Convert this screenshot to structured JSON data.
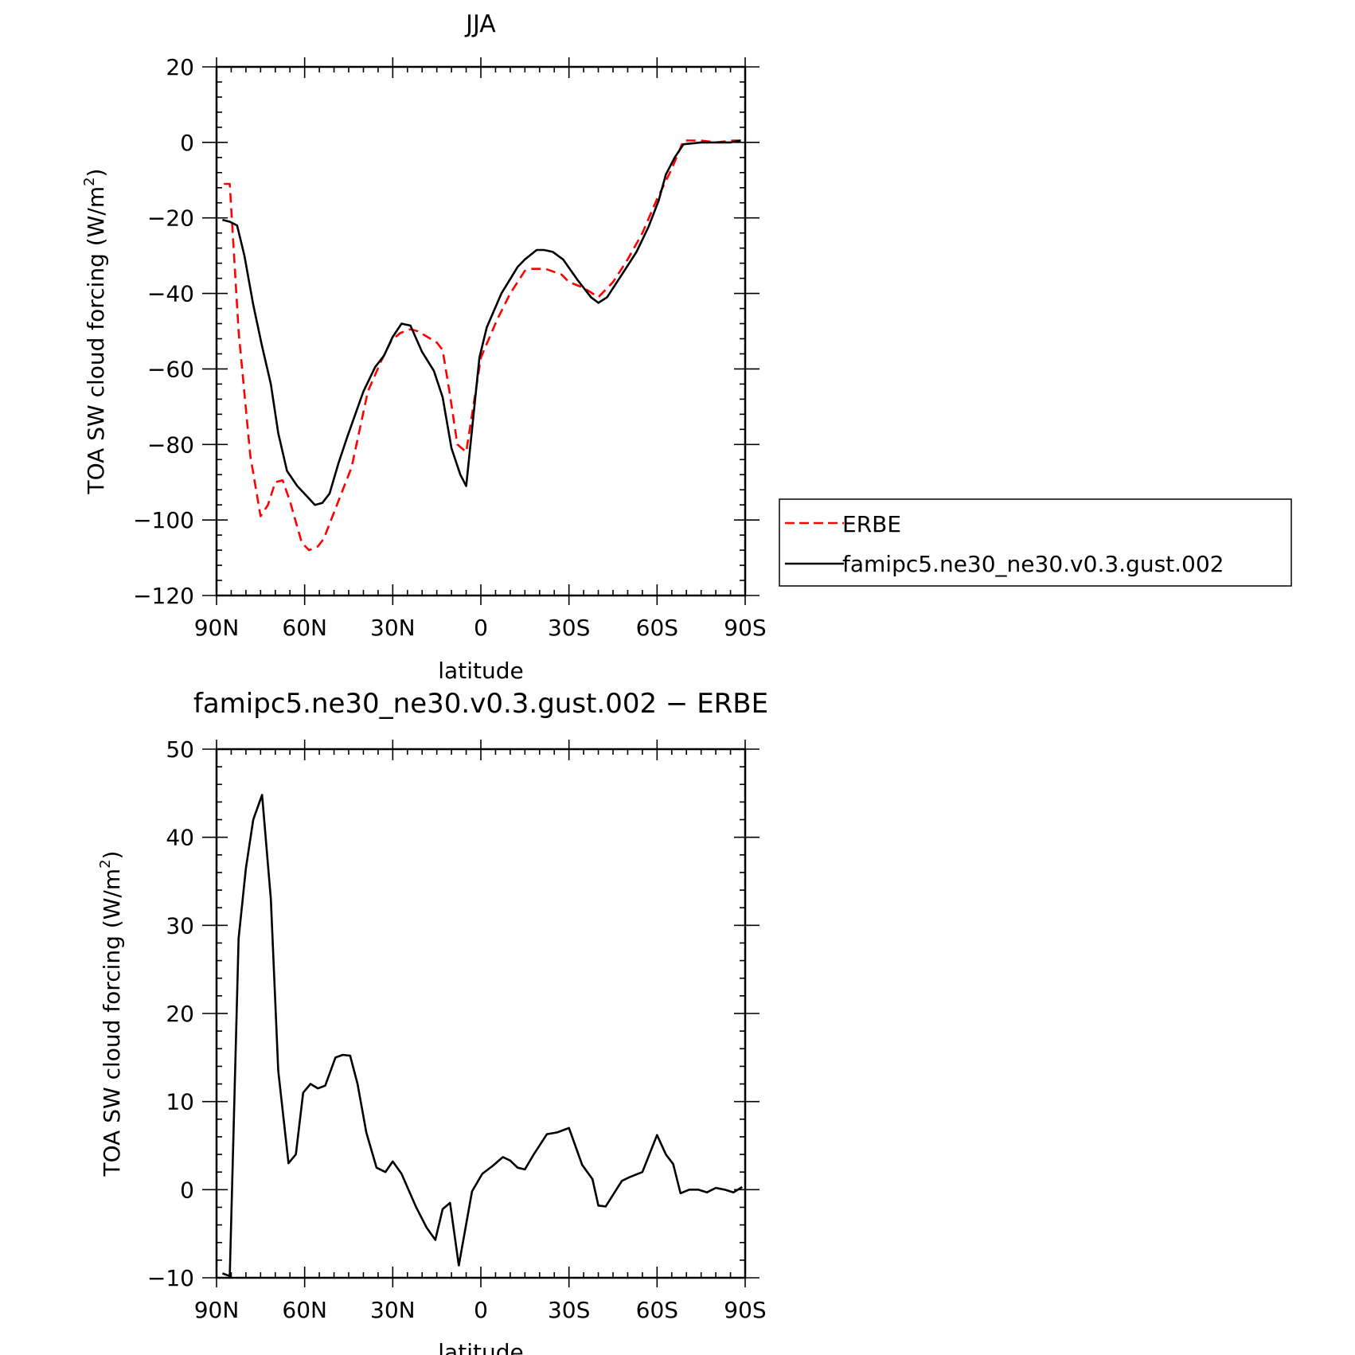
{
  "chart_data": [
    {
      "type": "line",
      "title": "JJA",
      "xlabel": "latitude",
      "ylabel": "TOA SW cloud forcing (W/m",
      "ylabel_sup": "2",
      "ylabel_end": ")",
      "xlim": [
        90,
        -90
      ],
      "ylim": [
        -120,
        20
      ],
      "xticks": [
        {
          "value": 90,
          "label": "90N"
        },
        {
          "value": 60,
          "label": "60N"
        },
        {
          "value": 30,
          "label": "30N"
        },
        {
          "value": 0,
          "label": "0"
        },
        {
          "value": -30,
          "label": "30S"
        },
        {
          "value": -60,
          "label": "60S"
        },
        {
          "value": -90,
          "label": "90S"
        }
      ],
      "yticks": [
        {
          "value": 20,
          "label": "20"
        },
        {
          "value": 0,
          "label": "0"
        },
        {
          "value": -20,
          "label": "−20"
        },
        {
          "value": -40,
          "label": "−40"
        },
        {
          "value": -60,
          "label": "−60"
        },
        {
          "value": -80,
          "label": "−80"
        },
        {
          "value": -100,
          "label": "−100"
        },
        {
          "value": -120,
          "label": "−120"
        }
      ],
      "legend": {
        "placement": "right",
        "entries": [
          {
            "name": "ERBE",
            "color": "#ff0000",
            "dashed": true
          },
          {
            "name": "famipc5.ne30_ne30.v0.3.gust.002",
            "color": "#000000",
            "dashed": false
          }
        ]
      },
      "series": [
        {
          "name": "ERBE",
          "color": "#ff0000",
          "dashed": true,
          "x": [
            87.5,
            85.5,
            82.5,
            78.5,
            75,
            72.5,
            70,
            67.5,
            65,
            61,
            58.5,
            55.5,
            53.5,
            49.5,
            44,
            38.5,
            34,
            30.5,
            27.5,
            24,
            21.5,
            15,
            13,
            10.5,
            8,
            5,
            0,
            -5.5,
            -10,
            -15,
            -17.5,
            -22,
            -27.5,
            -30,
            -35,
            -40,
            -45,
            -50,
            -55,
            -60,
            -65,
            -69,
            -75,
            -80,
            -86,
            -88.5
          ],
          "y": [
            -11,
            -11,
            -50,
            -83,
            -99,
            -96,
            -90,
            -89.5,
            -95,
            -106,
            -108,
            -107,
            -105,
            -97,
            -86,
            -66,
            -58,
            -52.5,
            -50.5,
            -49.5,
            -50,
            -53,
            -55,
            -67,
            -80,
            -82,
            -57,
            -47,
            -40,
            -34,
            -33.5,
            -33.5,
            -35,
            -37,
            -38.5,
            -41,
            -37,
            -31,
            -24,
            -15,
            -7,
            0.5,
            0.5,
            0,
            0.5,
            0.5
          ]
        },
        {
          "name": "famipc5.ne30_ne30.v0.3.gust.002",
          "color": "#000000",
          "dashed": false,
          "x": [
            88,
            85.5,
            83,
            80.5,
            77.5,
            74.5,
            71.5,
            69,
            66,
            62.5,
            59.5,
            56.5,
            54,
            51.5,
            48.5,
            45.5,
            40,
            36,
            33,
            30,
            27,
            24,
            20,
            16,
            13,
            10,
            7,
            5,
            0.5,
            -2,
            -7,
            -12.5,
            -15,
            -19,
            -21.5,
            -24.5,
            -28,
            -33,
            -37.5,
            -40,
            -43,
            -48,
            -53,
            -57,
            -60.5,
            -63,
            -66,
            -69,
            -75,
            -80,
            -85,
            -88.5
          ],
          "y": [
            -20.5,
            -21,
            -22,
            -30,
            -43,
            -54,
            -64,
            -77,
            -87,
            -91,
            -93.5,
            -96,
            -95.5,
            -93,
            -85,
            -78,
            -66,
            -59.5,
            -56.5,
            -51.5,
            -48,
            -48.5,
            -55.5,
            -60.5,
            -67.5,
            -81,
            -88,
            -91,
            -57,
            -49,
            -40,
            -33,
            -31,
            -28.5,
            -28.5,
            -29,
            -31,
            -36.5,
            -41,
            -42.5,
            -41,
            -35,
            -29,
            -22.5,
            -15.5,
            -8.5,
            -4,
            -0.5,
            0,
            0,
            0,
            0.5
          ]
        }
      ]
    },
    {
      "type": "line",
      "title": "famipc5.ne30_ne30.v0.3.gust.002 − ERBE",
      "xlabel": "latitude",
      "ylabel": "TOA SW cloud forcing (W/m",
      "ylabel_sup": "2",
      "ylabel_end": ")",
      "xlim": [
        90,
        -90
      ],
      "ylim": [
        -10,
        50
      ],
      "xticks": [
        {
          "value": 90,
          "label": "90N"
        },
        {
          "value": 60,
          "label": "60N"
        },
        {
          "value": 30,
          "label": "30N"
        },
        {
          "value": 0,
          "label": "0"
        },
        {
          "value": -30,
          "label": "30S"
        },
        {
          "value": -60,
          "label": "60S"
        },
        {
          "value": -90,
          "label": "90S"
        }
      ],
      "yticks": [
        {
          "value": 50,
          "label": "50"
        },
        {
          "value": 40,
          "label": "40"
        },
        {
          "value": 30,
          "label": "30"
        },
        {
          "value": 20,
          "label": "20"
        },
        {
          "value": 10,
          "label": "10"
        },
        {
          "value": 0,
          "label": "0"
        },
        {
          "value": -10,
          "label": "−10"
        }
      ],
      "series": [
        {
          "color": "#000000",
          "dashed": false,
          "x": [
            88,
            85.5,
            82.5,
            80,
            77.5,
            74.5,
            71.5,
            69,
            65.5,
            63,
            60.5,
            58,
            55.5,
            53,
            49.5,
            47,
            44.5,
            42,
            39,
            35.5,
            32.5,
            30,
            27,
            24,
            22,
            18.5,
            15.5,
            13,
            10.5,
            7.5,
            3,
            -0.5,
            -4,
            -7.5,
            -10,
            -12.5,
            -15,
            -18,
            -22.5,
            -26,
            -30,
            -34.5,
            -38,
            -40,
            -42.5,
            -48,
            -50.5,
            -55,
            -60,
            -63,
            -65.5,
            -68,
            -71,
            -74,
            -77,
            -80,
            -83,
            -86,
            -89
          ],
          "y": [
            -9.5,
            -9.8,
            28.5,
            36.5,
            42,
            44.8,
            33,
            13.5,
            3,
            4,
            11,
            12,
            11.5,
            11.8,
            15,
            15.3,
            15.2,
            12,
            6.5,
            2.5,
            2,
            3.2,
            1.8,
            -0.5,
            -2,
            -4.3,
            -5.7,
            -2.2,
            -1.5,
            -8.6,
            -0.2,
            1.8,
            2.7,
            3.7,
            3.3,
            2.5,
            2.3,
            4,
            6.3,
            6.5,
            7,
            2.8,
            1.2,
            -1.8,
            -1.9,
            1,
            1.4,
            2,
            6.2,
            4,
            2.9,
            -0.4,
            0,
            0,
            -0.3,
            0.2,
            0,
            -0.3,
            0.3
          ]
        }
      ]
    }
  ]
}
